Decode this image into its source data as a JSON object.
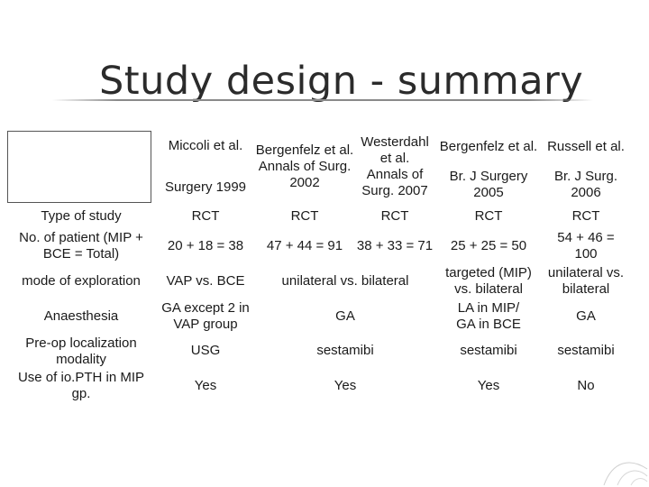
{
  "title": "Study design - summary",
  "table": {
    "header": {
      "miccoli_name": "Miccoli et al.",
      "miccoli_journal": "Surgery  1999",
      "bergenfelz2002": "Bergenfelz et al.\nAnnals of Surg.\n2002",
      "westerdahl": "Westerdahl et al.\nAnnals of Surg. 2007",
      "bergenfelz2005_name": "Bergenfelz et al.",
      "bergenfelz2005_journal": "Br. J Surgery\n2005",
      "russell_name": "Russell et al.",
      "russell_journal": "Br. J Surg.\n2006"
    },
    "rows": {
      "type_label": "Type of study",
      "type_miccoli": "RCT",
      "type_bergenfelz2002": "RCT",
      "type_westerdahl": "RCT",
      "type_bergenfelz2005": "RCT",
      "type_russell": "RCT",
      "patients_label": "No. of patient (MIP +\nBCE = Total)",
      "patients_miccoli": "20 + 18 = 38",
      "patients_bergenfelz2002": "47 + 44 = 91",
      "patients_westerdahl": "38 + 33 = 71",
      "patients_bergenfelz2005": "25 + 25 = 50",
      "patients_russell": "54 + 46 =\n100",
      "exploration_label": "mode of exploration",
      "exploration_miccoli": "VAP vs. BCE",
      "exploration_middle": "unilateral vs. bilateral",
      "exploration_bergenfelz2005": "targeted (MIP)\nvs. bilateral",
      "exploration_russell": "unilateral vs.\nbilateral",
      "anaesthesia_label": "Anaesthesia",
      "anaesthesia_miccoli": "GA except 2 in\nVAP group",
      "anaesthesia_middle": "GA",
      "anaesthesia_bergenfelz2005": "LA in MIP/\nGA in BCE",
      "anaesthesia_russell": "GA",
      "localization_label": "Pre-op localization\nmodality",
      "localization_miccoli": "USG",
      "localization_middle": "sestamibi",
      "localization_bergenfelz2005": "sestamibi",
      "localization_russell": "sestamibi",
      "iopth_label": "Use of io.PTH in MIP\ngp.",
      "iopth_miccoli": "Yes",
      "iopth_middle": "Yes",
      "iopth_bergenfelz2005": "Yes",
      "iopth_russell": "No"
    }
  },
  "colors": {
    "title": "#2b2b2b",
    "text": "#1a1a1a",
    "rule": "#8a8a8a"
  }
}
